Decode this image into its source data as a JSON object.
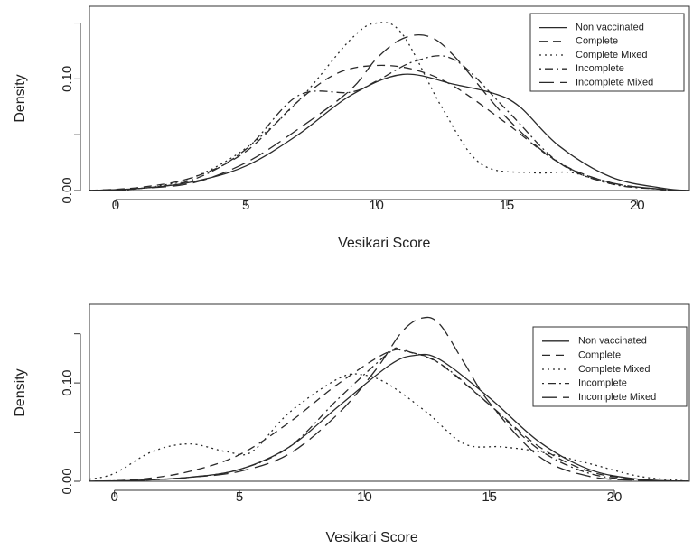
{
  "chart_data": [
    {
      "type": "line",
      "xlabel": "Vesikari Score",
      "ylabel": "Density",
      "xlim": [
        -1,
        22
      ],
      "ylim": [
        0,
        0.165
      ],
      "x_ticks": [
        0,
        5,
        10,
        15,
        20
      ],
      "y_ticks": [
        0.0,
        0.05,
        0.1,
        0.15
      ],
      "y_tick_labels": [
        "0.00",
        "",
        "0.10",
        ""
      ],
      "grid": false,
      "legend_position": "top-right",
      "series": [
        {
          "name": "Non vaccinated",
          "linestyle": "solid",
          "x": [
            -1,
            1,
            3,
            5,
            7,
            9,
            11,
            13,
            14.5,
            15.5,
            17,
            19,
            21,
            22
          ],
          "y": [
            0,
            0.002,
            0.008,
            0.022,
            0.05,
            0.085,
            0.104,
            0.095,
            0.087,
            0.075,
            0.04,
            0.012,
            0.002,
            0
          ]
        },
        {
          "name": "Complete",
          "linestyle": "dashed",
          "x": [
            -1,
            1,
            3,
            5,
            7,
            8.5,
            10,
            11.5,
            13,
            15,
            17,
            19,
            21,
            22
          ],
          "y": [
            0,
            0.003,
            0.012,
            0.035,
            0.08,
            0.105,
            0.112,
            0.108,
            0.093,
            0.06,
            0.025,
            0.007,
            0.001,
            0
          ]
        },
        {
          "name": "Complete Mixed",
          "linestyle": "dotted",
          "x": [
            -1,
            1,
            3,
            5,
            7,
            9,
            10,
            11,
            12.5,
            14,
            16,
            17.5,
            19,
            21,
            22
          ],
          "y": [
            0,
            0.002,
            0.012,
            0.038,
            0.08,
            0.135,
            0.15,
            0.14,
            0.075,
            0.024,
            0.016,
            0.016,
            0.006,
            0.001,
            0
          ]
        },
        {
          "name": "Incomplete",
          "linestyle": "dashdot",
          "x": [
            -1,
            1,
            3,
            5,
            7,
            9,
            10,
            11.5,
            13,
            15,
            17,
            19,
            21,
            22
          ],
          "y": [
            0,
            0.002,
            0.01,
            0.037,
            0.085,
            0.088,
            0.098,
            0.116,
            0.117,
            0.072,
            0.025,
            0.006,
            0.001,
            0
          ]
        },
        {
          "name": "Incomplete Mixed",
          "linestyle": "longdash",
          "x": [
            -1,
            1,
            3,
            5,
            7,
            9,
            10,
            11,
            12,
            13,
            15,
            17,
            19,
            21,
            22
          ],
          "y": [
            0,
            0.002,
            0.007,
            0.025,
            0.055,
            0.09,
            0.118,
            0.136,
            0.138,
            0.12,
            0.065,
            0.025,
            0.007,
            0.001,
            0
          ]
        }
      ]
    },
    {
      "type": "line",
      "xlabel": "Vesikari Score",
      "ylabel": "Density",
      "xlim": [
        -1,
        23
      ],
      "ylim": [
        0,
        0.18
      ],
      "x_ticks": [
        0,
        5,
        10,
        15,
        20
      ],
      "y_ticks": [
        0.0,
        0.05,
        0.1,
        0.15
      ],
      "y_tick_labels": [
        "0.00",
        "",
        "0.10",
        ""
      ],
      "grid": false,
      "legend_position": "top-right",
      "series": [
        {
          "name": "Non vaccinated",
          "linestyle": "solid",
          "x": [
            -1,
            1,
            3,
            5,
            7,
            9,
            11,
            12,
            13,
            15,
            17,
            19,
            21,
            23
          ],
          "y": [
            0,
            0.001,
            0.004,
            0.012,
            0.035,
            0.077,
            0.118,
            0.128,
            0.124,
            0.085,
            0.04,
            0.012,
            0.002,
            0
          ]
        },
        {
          "name": "Complete",
          "linestyle": "dashed",
          "x": [
            -1,
            1,
            3,
            5,
            7,
            9,
            11,
            12,
            13,
            15,
            17,
            19,
            21,
            23
          ],
          "y": [
            0,
            0.002,
            0.01,
            0.027,
            0.06,
            0.1,
            0.132,
            0.13,
            0.12,
            0.078,
            0.035,
            0.01,
            0.002,
            0
          ]
        },
        {
          "name": "Complete Mixed",
          "linestyle": "dotted",
          "x": [
            -1,
            0,
            1.5,
            3,
            4.5,
            5.5,
            7,
            9,
            10,
            11,
            12.5,
            14,
            15.5,
            17,
            19,
            21,
            23
          ],
          "y": [
            0.002,
            0.008,
            0.03,
            0.038,
            0.03,
            0.03,
            0.07,
            0.105,
            0.108,
            0.098,
            0.07,
            0.038,
            0.035,
            0.03,
            0.018,
            0.005,
            0
          ]
        },
        {
          "name": "Incomplete",
          "linestyle": "dashdot",
          "x": [
            -1,
            1,
            3,
            5,
            7,
            9,
            11,
            11.5,
            13,
            15,
            17,
            19,
            21,
            23
          ],
          "y": [
            0,
            0.001,
            0.004,
            0.012,
            0.035,
            0.085,
            0.131,
            0.133,
            0.12,
            0.078,
            0.032,
            0.008,
            0.001,
            0
          ]
        },
        {
          "name": "Incomplete Mixed",
          "linestyle": "longdash",
          "x": [
            -1,
            1,
            3,
            5,
            7,
            9,
            10.5,
            11.5,
            12.3,
            13,
            14,
            15,
            17,
            19,
            21,
            23
          ],
          "y": [
            0,
            0.001,
            0.004,
            0.01,
            0.028,
            0.07,
            0.115,
            0.152,
            0.166,
            0.16,
            0.12,
            0.08,
            0.025,
            0.005,
            0.001,
            0
          ]
        }
      ]
    }
  ]
}
